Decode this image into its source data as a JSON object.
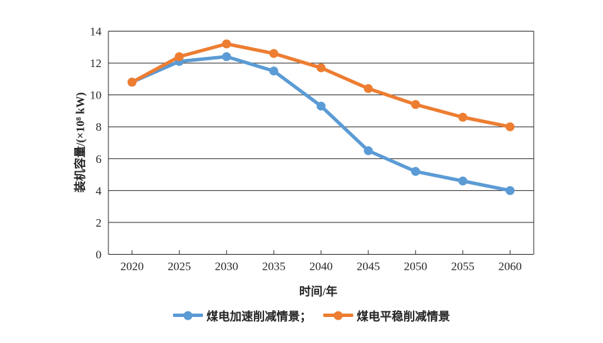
{
  "chart_data": {
    "type": "line",
    "categories": [
      "2020",
      "2025",
      "2030",
      "2035",
      "2040",
      "2045",
      "2050",
      "2055",
      "2060"
    ],
    "series": [
      {
        "name": "煤电加速削减情景",
        "key": "accelerated-reduction-series",
        "color": "#5B9BD5",
        "values": [
          10.8,
          12.1,
          12.4,
          11.5,
          9.3,
          6.5,
          5.2,
          4.6,
          4.0
        ]
      },
      {
        "name": "煤电平稳削减情景",
        "key": "steady-reduction-series",
        "color": "#ED7D31",
        "values": [
          10.8,
          12.4,
          13.2,
          12.6,
          11.7,
          10.4,
          9.4,
          8.6,
          8.0
        ]
      }
    ],
    "xlabel": "时间/年",
    "ylabel": "装机容量/(×10⁸ kW)",
    "ylim": [
      0,
      14
    ],
    "yticks": [
      0,
      2,
      4,
      6,
      8,
      10,
      12,
      14
    ],
    "grid": "horizontal",
    "legend_position": "bottom",
    "axis_color": "#262626",
    "marker": "circle",
    "line_width": 5,
    "marker_radius": 6.5
  },
  "legend": {
    "items": [
      {
        "label": "煤电加速削减情景；",
        "series_key": "accelerated-reduction-series"
      },
      {
        "label": "煤电平稳削减情景",
        "series_key": "steady-reduction-series"
      }
    ]
  }
}
